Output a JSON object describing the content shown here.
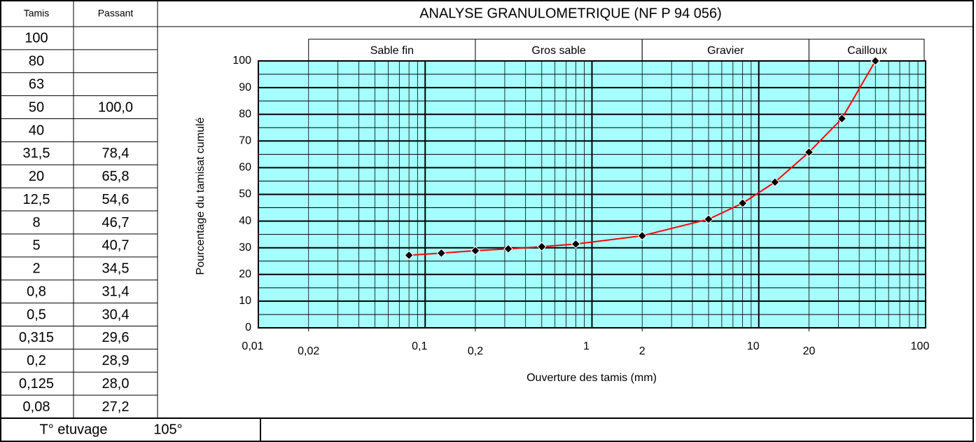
{
  "table": {
    "headers": [
      "Tamis",
      "Passant"
    ],
    "rows": [
      [
        "100",
        null
      ],
      [
        "80",
        null
      ],
      [
        "63",
        null
      ],
      [
        "50",
        "100,0"
      ],
      [
        "40",
        null
      ],
      [
        "31,5",
        "78,4"
      ],
      [
        "20",
        "65,8"
      ],
      [
        "12,5",
        "54,6"
      ],
      [
        "8",
        "46,7"
      ],
      [
        "5",
        "40,7"
      ],
      [
        "2",
        "34,5"
      ],
      [
        "0,8",
        "31,4"
      ],
      [
        "0,5",
        "30,4"
      ],
      [
        "0,315",
        "29,6"
      ],
      [
        "0,2",
        "28,9"
      ],
      [
        "0,125",
        "28,0"
      ],
      [
        "0,08",
        "27,2"
      ]
    ]
  },
  "footer": {
    "label": "T° etuvage",
    "value": "105°"
  },
  "chart_data": {
    "type": "line",
    "title": "ANALYSE GRANULOMETRIQUE  (NF P 94 056)",
    "x_label": "Ouverture des tamis (mm)",
    "y_label": "Pourcentage du tamisat cumulé",
    "x_scale": "log",
    "xlim": [
      0.01,
      100
    ],
    "ylim": [
      0,
      100
    ],
    "xticks": [
      {
        "value": 0.01,
        "label": "0,01"
      },
      {
        "value": 0.02,
        "label": "0,02"
      },
      {
        "value": 0.1,
        "label": "0,1"
      },
      {
        "value": 0.2,
        "label": "0,2"
      },
      1,
      2,
      10,
      20,
      100
    ],
    "yticks": [
      0,
      10,
      20,
      30,
      40,
      50,
      60,
      70,
      80,
      90,
      100
    ],
    "grid": true,
    "minor_grid": true,
    "background": "#a6ffff",
    "zones": [
      {
        "label": "Sable fin",
        "from": 0.02,
        "to": 0.2
      },
      {
        "label": "Gros sable",
        "from": 0.2,
        "to": 2
      },
      {
        "label": "Gravier",
        "from": 2,
        "to": 20
      },
      {
        "label": "Cailloux",
        "from": 20,
        "to": 100
      }
    ],
    "series": [
      {
        "color": "#ff0000",
        "marker_color": "#000000",
        "x": [
          0.08,
          0.125,
          0.2,
          0.315,
          0.5,
          0.8,
          2,
          5,
          8,
          12.5,
          20,
          31.5,
          50
        ],
        "values": [
          27.2,
          28.0,
          28.9,
          29.6,
          30.4,
          31.4,
          34.5,
          40.7,
          46.7,
          54.6,
          65.8,
          78.4,
          100.0
        ]
      }
    ]
  }
}
